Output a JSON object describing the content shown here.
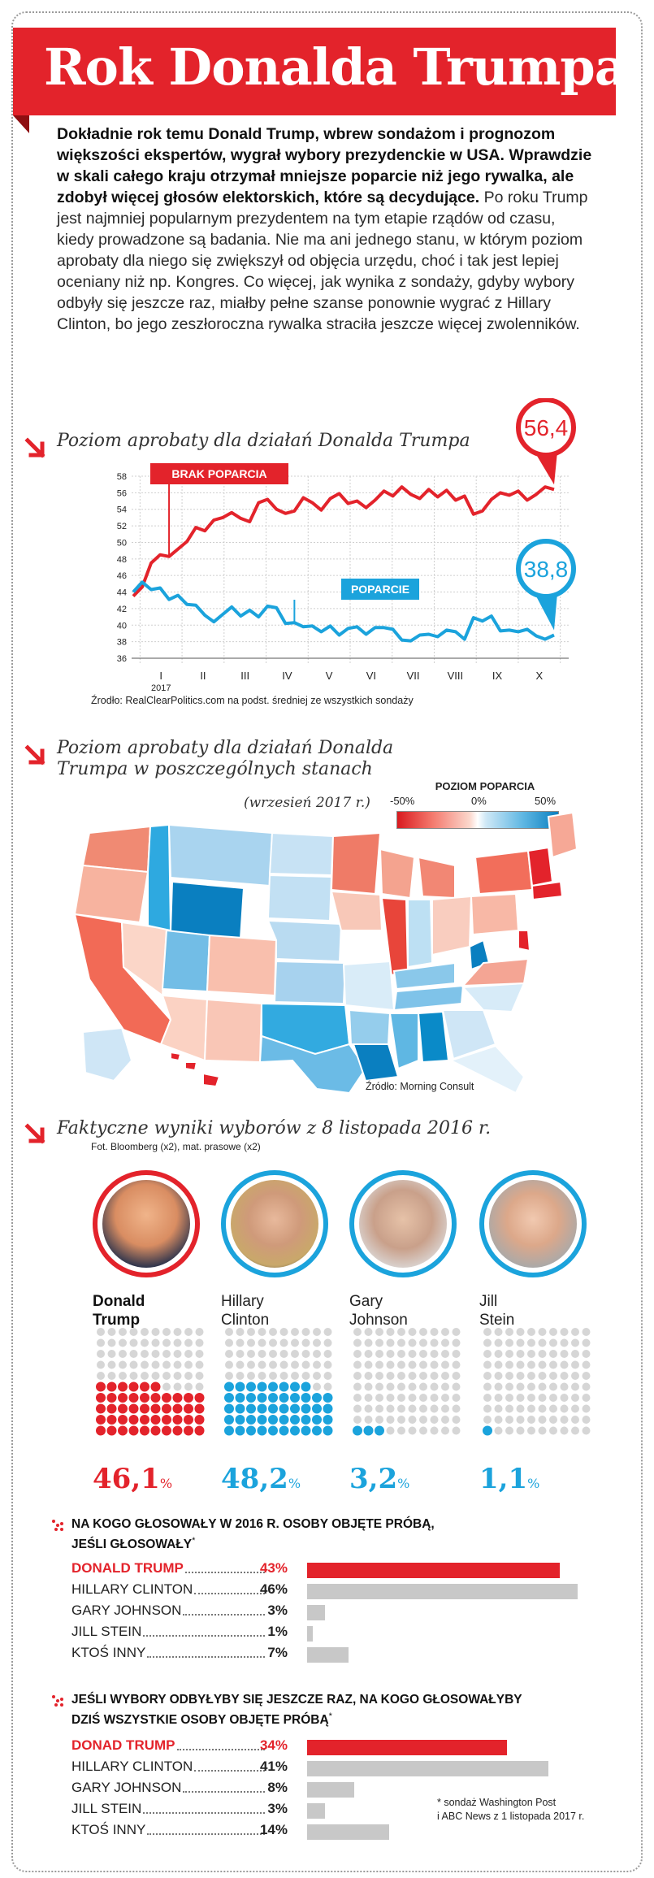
{
  "title": "Rok Donalda Trumpa",
  "lead": {
    "bold": "Dokładnie rok temu Donald Trump, wbrew sondażom i prognozom większości ekspertów, wygrał wybory prezydenckie w USA. Wprawdzie w skali całego kraju otrzymał mniejsze poparcie niż jego rywalka, ale zdobył więcej głosów elektorskich, które są decydujące.",
    "normal": " Po roku Trump jest najmniej popularnym prezydentem na tym etapie rządów od czasu, kiedy prowadzone są badania. Nie ma ani jednego stanu, w którym poziom aprobaty dla niego się zwiększył od objęcia urzędu, choć i tak jest lepiej oceniany niż np. Kongres. Co więcej, jak wynika z sondaży, gdyby wybory odbyły się jeszcze raz, miałby pełne szanse ponownie wygrać z Hillary Clinton, bo jego zeszłoroczna rywalka straciła jeszcze więcej zwolenników."
  },
  "colors": {
    "red": "#e3232b",
    "blue": "#1ba3dc",
    "grey": "#c8c8c8",
    "dot_grey": "#d6d6d6"
  },
  "chart_data": [
    {
      "type": "line",
      "title": "Poziom aprobaty dla działań Donalda Trumpa",
      "x_labels": [
        "I",
        "II",
        "III",
        "IV",
        "V",
        "VI",
        "VII",
        "VIII",
        "IX",
        "X"
      ],
      "x_year": "2017",
      "y_ticks": [
        36,
        38,
        40,
        42,
        44,
        46,
        48,
        50,
        52,
        54,
        56,
        58
      ],
      "ylim": [
        36,
        58
      ],
      "grid": true,
      "series": [
        {
          "name": "BRAK POPARCIA",
          "color": "#e3232b",
          "end_label": "56,4",
          "values": [
            43.5,
            44.6,
            47.5,
            48.5,
            48.3,
            49.2,
            50.1,
            51.8,
            51.4,
            52.7,
            53.0,
            53.6,
            52.9,
            52.5,
            54.8,
            55.2,
            54.0,
            53.5,
            53.8,
            55.4,
            54.8,
            53.9,
            55.3,
            55.9,
            54.7,
            55.0,
            54.2,
            55.1,
            56.2,
            55.6,
            56.7,
            55.8,
            55.3,
            56.4,
            55.5,
            56.3,
            55.1,
            55.6,
            53.4,
            53.8,
            55.2,
            56.0,
            55.7,
            56.2,
            55.1,
            55.8,
            56.7,
            56.4
          ]
        },
        {
          "name": "POPARCIE",
          "color": "#1ba3dc",
          "end_label": "38,8",
          "values": [
            44.0,
            45.2,
            44.3,
            44.5,
            43.1,
            43.6,
            42.5,
            42.4,
            41.2,
            40.4,
            41.3,
            42.2,
            41.1,
            41.8,
            41.0,
            42.3,
            42.1,
            40.2,
            40.3,
            39.8,
            39.9,
            39.2,
            39.9,
            38.8,
            39.6,
            39.8,
            38.9,
            39.7,
            39.7,
            39.5,
            38.2,
            38.1,
            38.8,
            38.9,
            38.6,
            39.4,
            39.2,
            38.3,
            40.9,
            40.5,
            41.1,
            39.3,
            39.4,
            39.2,
            39.5,
            38.7,
            38.3,
            38.8
          ]
        }
      ],
      "source": "Źrodło: RealClearPolitics.com na podst. średniej ze wszystkich sondaży"
    },
    {
      "type": "map",
      "title": "Poziom aprobaty dla działań Donalda Trumpa w poszczególnych stanach",
      "subtitle": "(wrzesień 2017 r.)",
      "legend_title": "POZIOM POPARCIA",
      "legend_ticks": [
        "-50%",
        "0%",
        "50%"
      ],
      "source": "Źródło: Morning Consult"
    },
    {
      "type": "bar",
      "title": "Faktyczne wyniki wyborów z 8 listopada 2016 r.",
      "credit": "Fot. Bloomberg (x2), mat. prasowe (x2)",
      "categories": [
        "Donald Trump",
        "Hillary Clinton",
        "Gary Johnson",
        "Jill Stein"
      ],
      "values": [
        46.1,
        48.2,
        3.2,
        1.1
      ],
      "labels": [
        "46,1",
        "48,2",
        "3,2",
        "1,1"
      ],
      "unit": "%"
    },
    {
      "type": "bar",
      "title": "Na kogo głosowały w 2016 r. osoby objęte próbą, jeśli głosowały*",
      "categories": [
        "DONALD TRUMP",
        "HILLARY CLINTON",
        "GARY JOHNSON",
        "JILL STEIN",
        "KTOŚ INNY"
      ],
      "values": [
        43,
        46,
        3,
        1,
        7
      ],
      "labels": [
        "43%",
        "46%",
        "3%",
        "1%",
        "7%"
      ]
    },
    {
      "type": "bar",
      "title": "Jeśli wybory odbyłyby się jeszcze raz, na kogo głosowałyby dziś wszystkie osoby objęte próbą*",
      "categories": [
        "DONAD TRUMP",
        "HILLARY CLINTON",
        "GARY JOHNSON",
        "JILL STEIN",
        "KTOŚ INNY"
      ],
      "values": [
        34,
        41,
        8,
        3,
        14
      ],
      "labels": [
        "34%",
        "41%",
        "8%",
        "3%",
        "14%"
      ]
    }
  ],
  "candidates": [
    {
      "first": "Donald",
      "last": "Trump",
      "pct": "46,1",
      "unit": "%"
    },
    {
      "first": "Hillary",
      "last": "Clinton",
      "pct": "48,2",
      "unit": "%"
    },
    {
      "first": "Gary",
      "last": "Johnson",
      "pct": "3,2",
      "unit": "%"
    },
    {
      "first": "Jill",
      "last": "Stein",
      "pct": "1,1",
      "unit": "%"
    }
  ],
  "poll1": {
    "head_line1": "Na kogo głosowały w 2016 r. osoby objęte próbą,",
    "head_line2": "jeśli głosowały",
    "star": "*"
  },
  "poll2": {
    "head_line1": "Jeśli wybory odbyłyby się jeszcze raz, na kogo głosowałyby",
    "head_line2": "dziś wszystkie osoby objęte próbą",
    "star": "*"
  },
  "footnote": {
    "line1": "* sondaż Washington Post",
    "line2": "i ABC News z 1 listopada 2017 r."
  }
}
